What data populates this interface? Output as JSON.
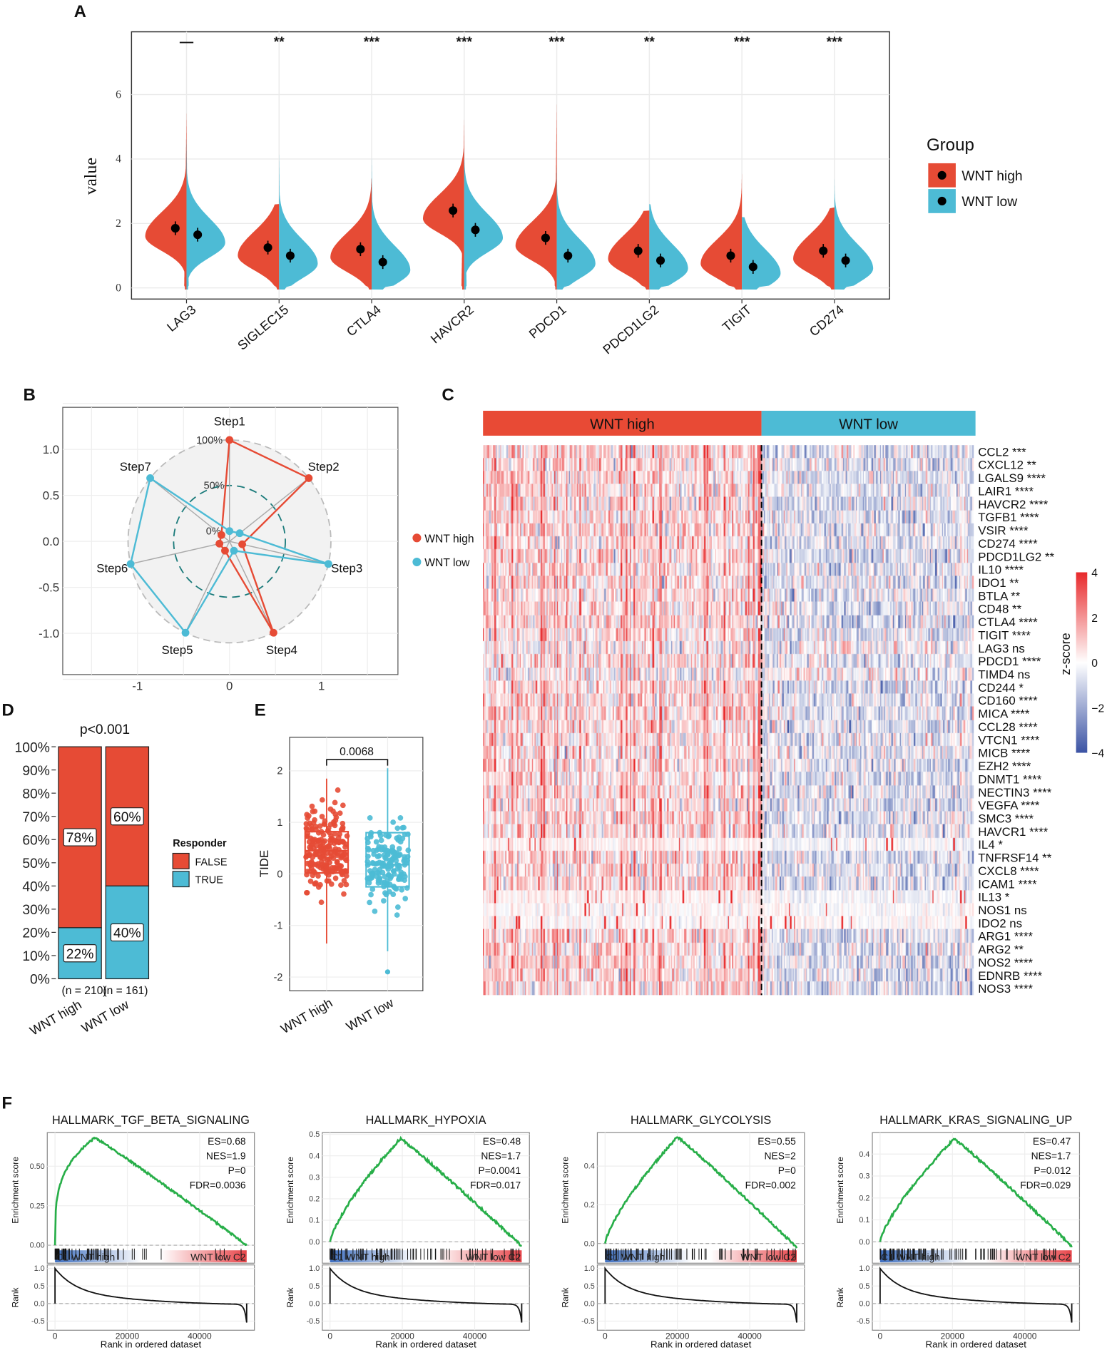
{
  "panel_letters": [
    "A",
    "B",
    "C",
    "D",
    "E",
    "F"
  ],
  "colors": {
    "high": "#E64B35",
    "low": "#4DBBD5",
    "heat_pos": "#E8292B",
    "heat_neg": "#3B53A4",
    "gsea_line": "#27AE48"
  },
  "chart_data": [
    {
      "id": "A",
      "type": "violin",
      "ylabel": "value",
      "yticks": [
        0,
        2,
        4,
        6
      ],
      "ylim": [
        -0.3,
        8
      ],
      "legend_title": "Group",
      "groups": [
        "WNT high",
        "WNT low"
      ],
      "genes": [
        "LAG3",
        "SIGLEC15",
        "CTLA4",
        "HAVCR2",
        "PDCD1",
        "PDCD1LG2",
        "TIGIT",
        "CD274"
      ],
      "significance": [
        "—",
        "**",
        "***",
        "***",
        "***",
        "**",
        "***",
        "***"
      ],
      "high_mean": [
        1.85,
        1.25,
        1.2,
        2.4,
        1.55,
        1.15,
        1.0,
        1.15
      ],
      "low_mean": [
        1.65,
        1.0,
        0.8,
        1.8,
        1.0,
        0.85,
        0.65,
        0.85
      ],
      "high_max": [
        5.5,
        2.6,
        3.4,
        5.3,
        5.8,
        2.4,
        3.6,
        2.5
      ],
      "low_max": [
        4.7,
        4.2,
        4.1,
        4.3,
        3.8,
        2.6,
        2.2,
        3.4
      ]
    },
    {
      "id": "B",
      "type": "radar",
      "steps": [
        "Step1",
        "Step2",
        "Step3",
        "Step4",
        "Step5",
        "Step6",
        "Step7"
      ],
      "ring_labels": [
        "0%",
        "50%",
        "100%"
      ],
      "xticks": [
        -1,
        0,
        1
      ],
      "yticks": [
        "1.0",
        "0.5",
        "0.0",
        "-0.5",
        "-1.0"
      ],
      "series": [
        {
          "name": "WNT high",
          "values": [
            100,
            100,
            3,
            100,
            0,
            0,
            0
          ]
        },
        {
          "name": "WNT low",
          "values": [
            0,
            3,
            100,
            0,
            100,
            100,
            100
          ]
        }
      ]
    },
    {
      "id": "C",
      "type": "heatmap",
      "column_groups": [
        {
          "name": "WNT high",
          "n": 210
        },
        {
          "name": "WNT low",
          "n": 161
        }
      ],
      "legend_title": "z-score",
      "legend_ticks": [
        "4",
        "2",
        "0",
        "−2",
        "−4"
      ],
      "rows": [
        [
          "CCL2",
          "***"
        ],
        [
          "CXCL12",
          "**"
        ],
        [
          "LGALS9",
          "****"
        ],
        [
          "LAIR1",
          "****"
        ],
        [
          "HAVCR2",
          "****"
        ],
        [
          "TGFB1",
          "****"
        ],
        [
          "VSIR",
          "****"
        ],
        [
          "CD274",
          "****"
        ],
        [
          "PDCD1LG2",
          "**"
        ],
        [
          "IL10",
          "****"
        ],
        [
          "IDO1",
          "**"
        ],
        [
          "BTLA",
          "**"
        ],
        [
          "CD48",
          "**"
        ],
        [
          "CTLA4",
          "****"
        ],
        [
          "TIGIT",
          "****"
        ],
        [
          "LAG3",
          "ns"
        ],
        [
          "PDCD1",
          "****"
        ],
        [
          "TIMD4",
          "ns"
        ],
        [
          "CD244",
          "*"
        ],
        [
          "CD160",
          "****"
        ],
        [
          "MICA",
          "****"
        ],
        [
          "CCL28",
          "****"
        ],
        [
          "VTCN1",
          "****"
        ],
        [
          "MICB",
          "****"
        ],
        [
          "EZH2",
          "****"
        ],
        [
          "DNMT1",
          "****"
        ],
        [
          "NECTIN3",
          "****"
        ],
        [
          "VEGFA",
          "****"
        ],
        [
          "SMC3",
          "****"
        ],
        [
          "HAVCR1",
          "****"
        ],
        [
          "IL4",
          "*"
        ],
        [
          "TNFRSF14",
          "**"
        ],
        [
          "CXCL8",
          "****"
        ],
        [
          "ICAM1",
          "****"
        ],
        [
          "IL13",
          "*"
        ],
        [
          "NOS1",
          "ns"
        ],
        [
          "IDO2",
          "ns"
        ],
        [
          "ARG1",
          "****"
        ],
        [
          "ARG2",
          "**"
        ],
        [
          "NOS2",
          "****"
        ],
        [
          "EDNRB",
          "****"
        ],
        [
          "NOS3",
          "****"
        ]
      ]
    },
    {
      "id": "D",
      "type": "bar",
      "stacked": true,
      "title": "p<0.001",
      "categories": [
        "WNT high",
        "WNT low"
      ],
      "n_labels": [
        "(n = 210)",
        "(n = 161)"
      ],
      "legend_title": "Responder",
      "series": [
        {
          "name": "FALSE",
          "values": [
            78,
            60
          ]
        },
        {
          "name": "TRUE",
          "values": [
            22,
            40
          ]
        }
      ],
      "yticks": [
        "0%",
        "10%",
        "20%",
        "30%",
        "40%",
        "50%",
        "60%",
        "70%",
        "80%",
        "90%",
        "100%"
      ]
    },
    {
      "id": "E",
      "type": "box",
      "ylabel": "TIDE",
      "categories": [
        "WNT high",
        "WNT low"
      ],
      "yticks": [
        -2,
        -1,
        0,
        1,
        2
      ],
      "ylim": [
        -2.3,
        2.65
      ],
      "pvalue": "0.0068",
      "stats": [
        {
          "min": -1.35,
          "q1": 0.02,
          "median": 0.45,
          "q3": 0.82,
          "max": 1.85
        },
        {
          "min": -1.5,
          "q1": -0.25,
          "median": 0.18,
          "q3": 0.8,
          "max": 2.05,
          "outliers": [
            -1.9
          ]
        }
      ]
    },
    {
      "id": "F",
      "type": "line",
      "plots": [
        {
          "title": "HALLMARK_TGF_BETA_SIGNALING",
          "stats": [
            "ES=0.68",
            "NES=1.9",
            "P=0",
            "FDR=0.0036"
          ],
          "es": 0.68,
          "peak": 11000,
          "ylim": [
            -0.016,
            0.713
          ],
          "yticks": [
            "0.00",
            "0.25",
            "0.50"
          ],
          "ytick_vals": [
            0,
            0.25,
            0.5
          ]
        },
        {
          "title": "HALLMARK_HYPOXIA",
          "stats": [
            "ES=0.48",
            "NES=1.7",
            "P=0.0041",
            "FDR=0.017"
          ],
          "es": 0.48,
          "peak": 19500,
          "ylim": [
            -0.028,
            0.508
          ],
          "yticks": [
            "0.0",
            "0.1",
            "0.2",
            "0.3",
            "0.4",
            "0.5"
          ],
          "ytick_vals": [
            0,
            0.1,
            0.2,
            0.3,
            0.4,
            0.5
          ]
        },
        {
          "title": "HALLMARK_GLYCOLYSIS",
          "stats": [
            "ES=0.55",
            "NES=2",
            "P=0",
            "FDR=0.002"
          ],
          "es": 0.55,
          "peak": 20000,
          "ylim": [
            -0.022,
            0.573
          ],
          "yticks": [
            "0.0",
            "0.2",
            "0.4"
          ],
          "ytick_vals": [
            0,
            0.2,
            0.4
          ]
        },
        {
          "title": "HALLMARK_KRAS_SIGNALING_UP",
          "stats": [
            "ES=0.47",
            "NES=1.7",
            "P=0.012",
            "FDR=0.029"
          ],
          "es": 0.47,
          "peak": 20500,
          "ylim": [
            -0.027,
            0.498
          ],
          "yticks": [
            "0.0",
            "0.1",
            "0.2",
            "0.3",
            "0.4"
          ],
          "ytick_vals": [
            0,
            0.1,
            0.2,
            0.3,
            0.4
          ]
        }
      ],
      "ylabel_top": "Enrichment score",
      "ylabel_bottom": "Rank",
      "xlabel": "Rank in ordered dataset",
      "xticks": [
        0,
        20000,
        40000
      ],
      "xmax": 53000,
      "rank_yticks": [
        "1.0",
        "0.5",
        "0.0",
        "-0.5"
      ],
      "rank_ytick_vals": [
        1.0,
        0.5,
        0.0,
        -0.5
      ],
      "left_label": "C1 WNT high",
      "right_label": "WNT low C2"
    }
  ]
}
